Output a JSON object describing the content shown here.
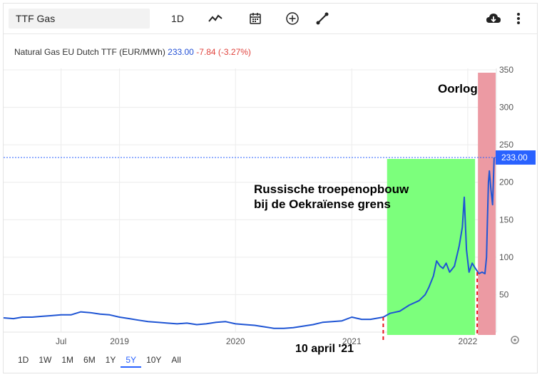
{
  "toolbar": {
    "symbol": "TTF Gas",
    "interval": "1D"
  },
  "legend": {
    "name": "Natural Gas EU Dutch TTF (EUR/MWh)",
    "price": "233.00",
    "change": "-7.84 (-3.27%)"
  },
  "current_price_label": "233.00",
  "annotations": {
    "war": "Oorlog",
    "buildup_line1": "Russische troepenopbouw",
    "buildup_line2": "bij de Oekraïense grens",
    "date": "10 april '21"
  },
  "range_buttons": [
    "1D",
    "1W",
    "1M",
    "6M",
    "1Y",
    "5Y",
    "10Y",
    "All"
  ],
  "active_range": "5Y",
  "colors": {
    "line": "#1f55d4",
    "green_zone": "#7cff7c",
    "red_zone": "#ec9aa3",
    "dashed_marker": "#e8141c",
    "price_tag": "#2962ff"
  },
  "chart_data": {
    "type": "line",
    "title": "Natural Gas EU Dutch TTF (EUR/MWh)",
    "x_tick_labels": [
      "Jul",
      "2019",
      "2020",
      "2021",
      "2022"
    ],
    "y_tick_labels": [
      "50",
      "100",
      "150",
      "200",
      "250",
      "300",
      "350"
    ],
    "ylim": [
      0,
      350
    ],
    "xlim": [
      "2018-01-01",
      "2022-04-01"
    ],
    "grid": true,
    "current_value": 233,
    "series": [
      {
        "x": [
          "2018-01-01",
          "2018-02-01",
          "2018-03-01",
          "2018-04-01",
          "2018-05-01",
          "2018-06-01",
          "2018-07-01",
          "2018-08-01",
          "2018-09-01",
          "2018-10-01",
          "2018-11-01",
          "2018-12-01",
          "2019-01-01",
          "2019-02-01",
          "2019-03-01",
          "2019-04-01",
          "2019-05-01",
          "2019-06-01",
          "2019-07-01",
          "2019-08-01",
          "2019-09-01",
          "2019-10-01",
          "2019-11-01",
          "2019-12-01",
          "2020-01-01",
          "2020-02-01",
          "2020-03-01",
          "2020-04-01",
          "2020-05-01",
          "2020-06-01",
          "2020-07-01",
          "2020-08-01",
          "2020-09-01",
          "2020-10-01",
          "2020-11-01",
          "2020-12-01",
          "2021-01-01",
          "2021-02-01",
          "2021-03-01",
          "2021-04-10",
          "2021-05-01",
          "2021-06-01",
          "2021-07-01",
          "2021-08-01",
          "2021-08-20",
          "2021-09-01",
          "2021-09-15",
          "2021-09-25",
          "2021-10-06",
          "2021-10-15",
          "2021-10-25",
          "2021-11-05",
          "2021-11-20",
          "2021-12-05",
          "2021-12-15",
          "2021-12-21",
          "2021-12-28",
          "2022-01-05",
          "2022-01-15",
          "2022-01-25",
          "2022-02-05",
          "2022-02-15",
          "2022-02-24",
          "2022-03-01",
          "2022-03-04",
          "2022-03-07",
          "2022-03-10",
          "2022-03-15",
          "2022-03-20",
          "2022-03-25"
        ],
        "values": [
          19,
          18,
          20,
          20,
          21,
          22,
          23,
          23,
          27,
          26,
          24,
          23,
          20,
          18,
          16,
          14,
          13,
          12,
          11,
          12,
          10,
          11,
          13,
          14,
          11,
          10,
          9,
          7,
          5,
          5,
          6,
          8,
          10,
          13,
          14,
          15,
          20,
          17,
          17,
          20,
          25,
          28,
          36,
          42,
          50,
          60,
          75,
          95,
          88,
          85,
          92,
          80,
          88,
          115,
          140,
          180,
          110,
          80,
          92,
          85,
          78,
          80,
          78,
          100,
          150,
          200,
          215,
          190,
          170,
          233
        ]
      }
    ]
  }
}
